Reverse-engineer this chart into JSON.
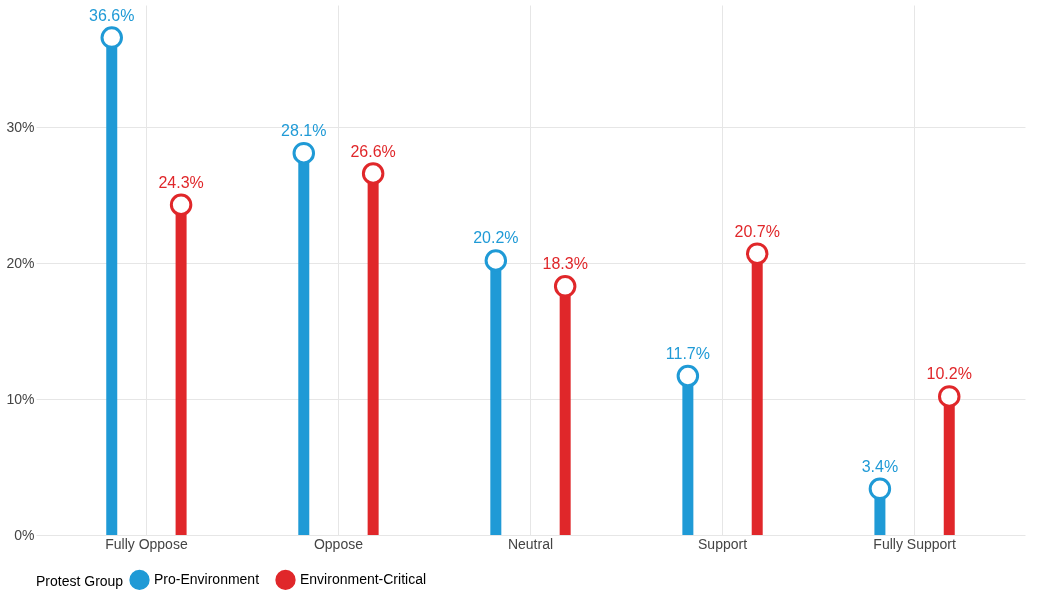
{
  "chart_data": {
    "type": "lollipop",
    "categories": [
      "Fully Oppose",
      "Oppose",
      "Neutral",
      "Support",
      "Fully Support"
    ],
    "series": [
      {
        "name": "Pro-Environment",
        "color": "#1f9ad6",
        "values": [
          36.6,
          28.1,
          20.2,
          11.7,
          3.4
        ],
        "value_labels": [
          "36.6%",
          "28.1%",
          "20.2%",
          "11.7%",
          "3.4%"
        ]
      },
      {
        "name": "Environment-Critical",
        "color": "#e0272a",
        "values": [
          24.3,
          26.6,
          18.3,
          20.7,
          10.2
        ],
        "value_labels": [
          "24.3%",
          "26.6%",
          "18.3%",
          "20.7%",
          "10.2%"
        ]
      }
    ],
    "ylim": [
      0,
      39
    ],
    "yticks": [
      {
        "value": 0,
        "label": "0%"
      },
      {
        "value": 10,
        "label": "10%"
      },
      {
        "value": 20,
        "label": "20%"
      },
      {
        "value": 30,
        "label": "30%"
      }
    ],
    "legend_title": "Protest Group",
    "legend": "bottom",
    "grid": true,
    "marker": "circle"
  }
}
